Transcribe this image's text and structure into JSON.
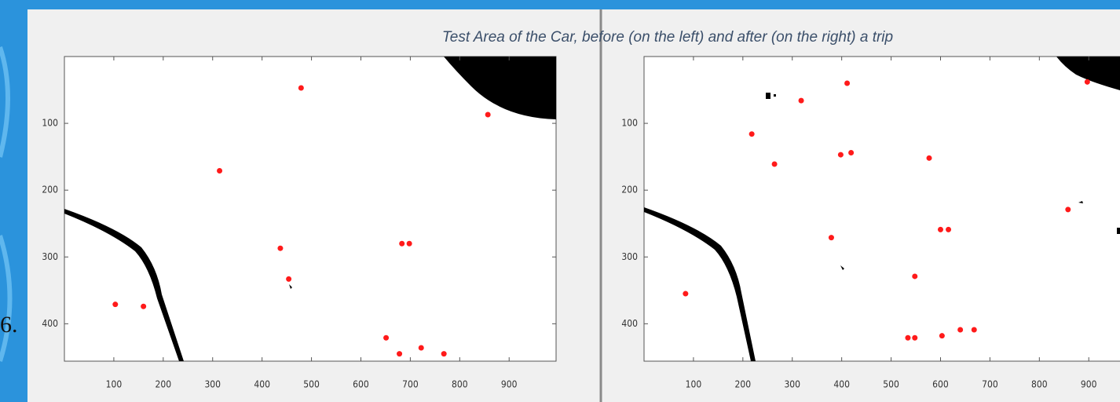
{
  "title": "Test Area of the Car, before (on the left) and after (on the right) a trip",
  "side_label": "6.",
  "chart_data": [
    {
      "type": "scatter",
      "color": "#ff1a1a",
      "x": [
        479,
        314,
        857,
        437,
        683,
        698,
        454,
        103,
        160,
        651,
        678,
        722,
        768
      ],
      "y": [
        47,
        171,
        87,
        287,
        280,
        280,
        333,
        371,
        374,
        421,
        445,
        436,
        445
      ],
      "xlim": [
        0,
        995
      ],
      "ylim": [
        456,
        0
      ],
      "xticks": [
        100,
        200,
        300,
        400,
        500,
        600,
        700,
        800,
        900
      ],
      "yticks": [
        100,
        200,
        300,
        400
      ]
    },
    {
      "type": "scatter",
      "color": "#ff1a1a",
      "x": [
        411,
        318,
        218,
        264,
        398,
        419,
        577,
        858,
        600,
        616,
        379,
        548,
        84,
        534,
        548,
        603,
        640,
        668,
        897
      ],
      "y": [
        40,
        66,
        116,
        161,
        147,
        144,
        152,
        229,
        259,
        259,
        271,
        329,
        355,
        421,
        421,
        418,
        409,
        409,
        38
      ],
      "xlim": [
        0,
        995
      ],
      "ylim": [
        456,
        0
      ],
      "xticks": [
        100,
        200,
        300,
        400,
        500,
        600,
        700,
        800,
        900
      ],
      "yticks": [
        100,
        200,
        300,
        400
      ]
    }
  ]
}
